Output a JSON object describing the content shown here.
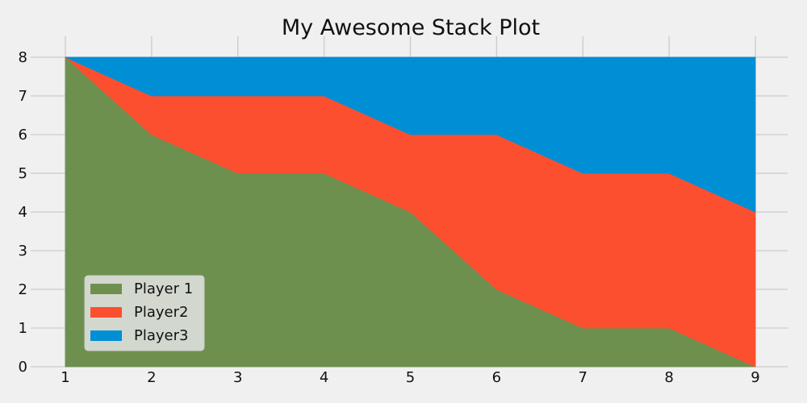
{
  "chart_data": {
    "type": "area",
    "stacked": true,
    "title": "My Awesome Stack Plot",
    "xlabel": "",
    "ylabel": "",
    "x": [
      1,
      2,
      3,
      4,
      5,
      6,
      7,
      8,
      9
    ],
    "xlim": [
      1,
      9
    ],
    "ylim": [
      0,
      8
    ],
    "xticks": [
      "1",
      "2",
      "3",
      "4",
      "5",
      "6",
      "7",
      "8",
      "9"
    ],
    "yticks": [
      "0",
      "1",
      "2",
      "3",
      "4",
      "5",
      "6",
      "7",
      "8"
    ],
    "grid": true,
    "legend_position": "lower-left",
    "series": [
      {
        "name": "Player 1",
        "color": "#6d904f",
        "values": [
          8,
          6,
          5,
          5,
          4,
          2,
          1,
          1,
          0
        ]
      },
      {
        "name": "Player2",
        "color": "#fc4f30",
        "values": [
          0,
          1,
          2,
          2,
          2,
          4,
          4,
          4,
          4
        ]
      },
      {
        "name": "Player3",
        "color": "#008fd5",
        "values": [
          0,
          1,
          1,
          1,
          2,
          2,
          3,
          3,
          4
        ]
      }
    ]
  }
}
